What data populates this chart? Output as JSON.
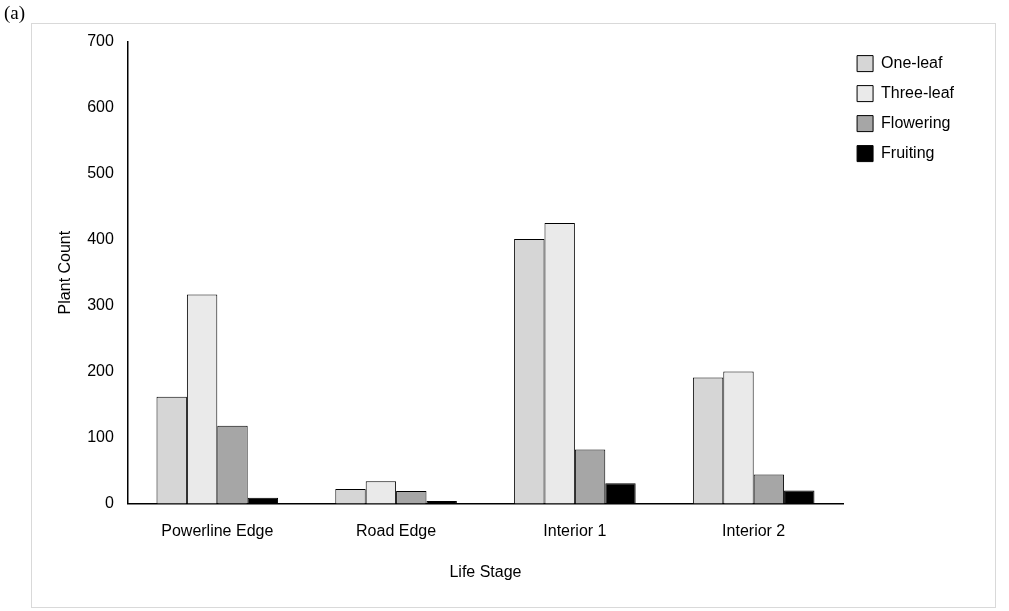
{
  "chart_data": {
    "type": "bar",
    "xlabel": "Life Stage",
    "ylabel": "Plant Count",
    "annotations": [
      "(a)"
    ],
    "categories": [
      "Powerline Edge",
      "Road Edge",
      "Interior 1",
      "Interior 2"
    ],
    "series": [
      {
        "name": "One-leaf",
        "color": "#d6d6d6",
        "values": [
          162,
          22,
          401,
          191
        ]
      },
      {
        "name": "Three-leaf",
        "color": "#eaeaea",
        "values": [
          317,
          34,
          425,
          200
        ]
      },
      {
        "name": "Flowering",
        "color": "#a6a6a6",
        "values": [
          118,
          19,
          82,
          44
        ]
      },
      {
        "name": "Fruiting",
        "color": "#000000",
        "values": [
          9,
          4,
          31,
          20
        ]
      }
    ],
    "ylim": [
      0,
      700
    ],
    "yticks": [
      0,
      100,
      200,
      300,
      400,
      500,
      600,
      700
    ],
    "grid": false,
    "legend": "top right"
  }
}
